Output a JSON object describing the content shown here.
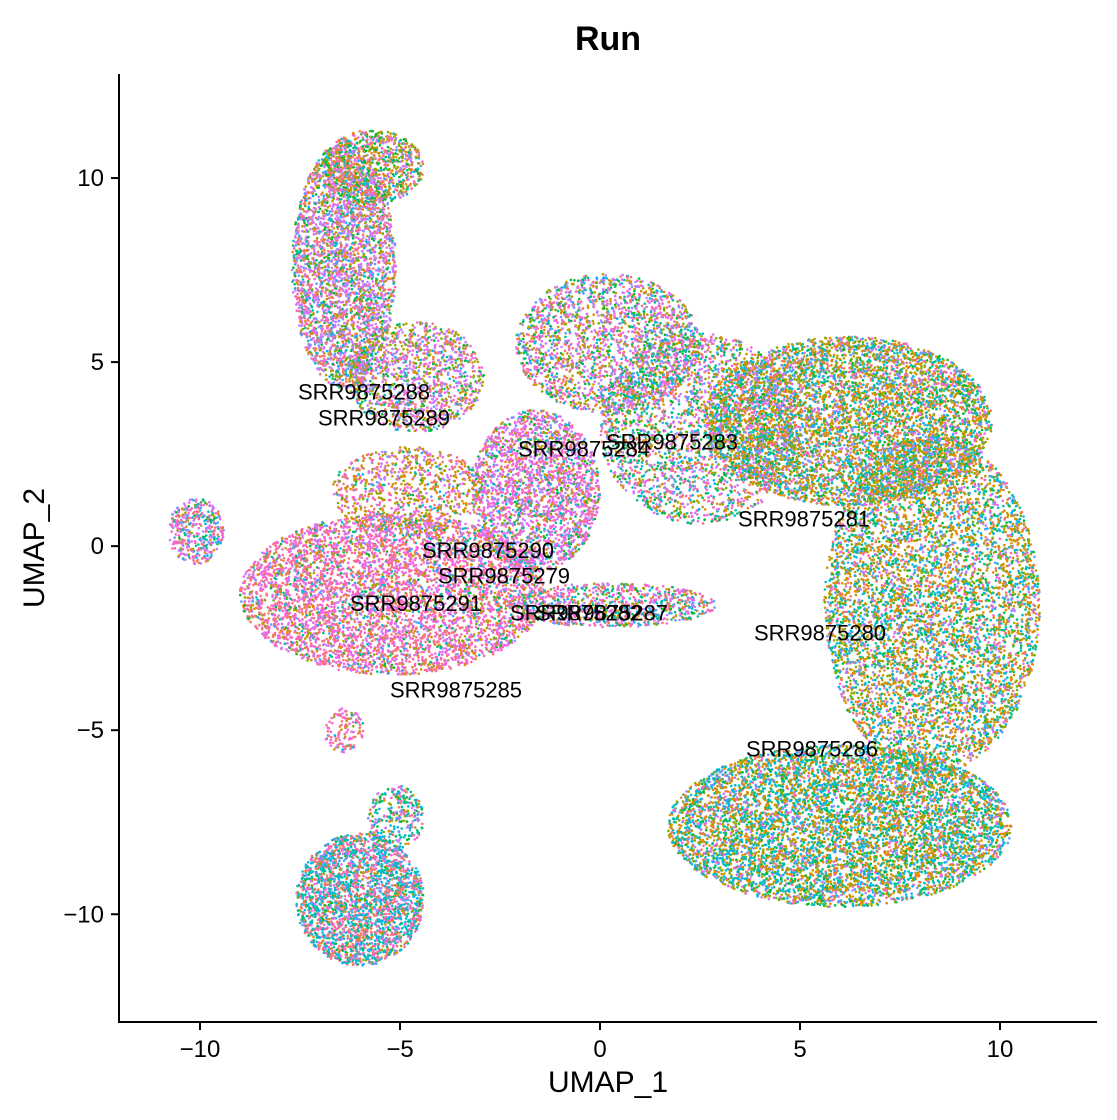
{
  "chart_data": {
    "type": "scatter",
    "title": "Run",
    "xlabel": "UMAP_1",
    "ylabel": "UMAP_2",
    "xlim": [
      -12,
      12.4
    ],
    "ylim": [
      -12.9,
      12.8
    ],
    "xticks": [
      -10,
      -5,
      0,
      5,
      10
    ],
    "yticks": [
      -10,
      -5,
      0,
      5,
      10
    ],
    "xtick_labels": [
      "−10",
      "−5",
      "0",
      "5",
      "10"
    ],
    "ytick_labels": [
      "−10",
      "−5",
      "0",
      "5",
      "10"
    ],
    "grid": false,
    "legend": "none",
    "palette": [
      "#F8766D",
      "#DE8C00",
      "#B79F00",
      "#7CAE00",
      "#00BA38",
      "#00C08B",
      "#00BFC4",
      "#00B4F0",
      "#619CFF",
      "#C77CFF",
      "#F564E3",
      "#FF64B0"
    ],
    "labels": [
      {
        "text": "SRR9875288",
        "x": -5.9,
        "y": 4.2
      },
      {
        "text": "SRR9875289",
        "x": -5.4,
        "y": 3.5
      },
      {
        "text": "SRR9875284",
        "x": -0.4,
        "y": 2.65
      },
      {
        "text": "SRR9875283",
        "x": 1.8,
        "y": 2.85
      },
      {
        "text": "SRR9875281",
        "x": 5.1,
        "y": 0.75
      },
      {
        "text": "SRR9875290",
        "x": -2.8,
        "y": -0.1
      },
      {
        "text": "SRR9875279",
        "x": -2.4,
        "y": -0.8
      },
      {
        "text": "SRR9875291",
        "x": -4.6,
        "y": -1.55
      },
      {
        "text": "SRR9875282",
        "x": -0.6,
        "y": -1.8
      },
      {
        "text": "SRR9875287",
        "x": 0.05,
        "y": -1.8
      },
      {
        "text": "SRR9875280",
        "x": 5.5,
        "y": -2.35
      },
      {
        "text": "SRR9875285",
        "x": -3.6,
        "y": -3.9
      },
      {
        "text": "SRR9875286",
        "x": 5.3,
        "y": -5.5
      }
    ],
    "point_regions": [
      {
        "name": "upper-left arm",
        "xc": -6.4,
        "yc": 7.6,
        "rx": 1.3,
        "ry": 3.3,
        "n": 3200,
        "mix": [
          0.15,
          0.05,
          0.08,
          0.05,
          0.07,
          0.04,
          0.05,
          0.03,
          0.06,
          0.28,
          0.08,
          0.06
        ]
      },
      {
        "name": "upper-left arm tip",
        "xc": -5.7,
        "yc": 10.3,
        "rx": 1.3,
        "ry": 1.0,
        "n": 900,
        "mix": [
          0.2,
          0.1,
          0.12,
          0.1,
          0.15,
          0.04,
          0.06,
          0.03,
          0.03,
          0.12,
          0.03,
          0.02
        ]
      },
      {
        "name": "arm lower",
        "xc": -4.6,
        "yc": 4.6,
        "rx": 1.7,
        "ry": 1.5,
        "n": 1300,
        "mix": [
          0.06,
          0.05,
          0.12,
          0.07,
          0.08,
          0.03,
          0.04,
          0.02,
          0.05,
          0.28,
          0.12,
          0.08
        ]
      },
      {
        "name": "left cluster",
        "xc": -5.2,
        "yc": -1.3,
        "rx": 3.8,
        "ry": 2.2,
        "n": 5200,
        "mix": [
          0.22,
          0.04,
          0.05,
          0.03,
          0.03,
          0.02,
          0.03,
          0.02,
          0.04,
          0.1,
          0.27,
          0.15
        ]
      },
      {
        "name": "left cluster top",
        "xc": -4.8,
        "yc": 1.5,
        "rx": 1.9,
        "ry": 1.2,
        "n": 900,
        "mix": [
          0.1,
          0.15,
          0.2,
          0.05,
          0.04,
          0.02,
          0.02,
          0.01,
          0.03,
          0.15,
          0.15,
          0.08
        ]
      },
      {
        "name": "left tail",
        "xc": -10.1,
        "yc": 0.4,
        "rx": 0.7,
        "ry": 0.9,
        "n": 400,
        "mix": [
          0.12,
          0.03,
          0.03,
          0.02,
          0.05,
          0.05,
          0.08,
          0.06,
          0.1,
          0.18,
          0.18,
          0.1
        ]
      },
      {
        "name": "central strip",
        "xc": -1.6,
        "yc": 1.5,
        "rx": 1.6,
        "ry": 2.2,
        "n": 2400,
        "mix": [
          0.08,
          0.04,
          0.06,
          0.03,
          0.05,
          0.03,
          0.04,
          0.02,
          0.04,
          0.25,
          0.26,
          0.1
        ]
      },
      {
        "name": "central top",
        "xc": 0.2,
        "yc": 5.5,
        "rx": 2.3,
        "ry": 1.9,
        "n": 2200,
        "mix": [
          0.1,
          0.08,
          0.08,
          0.08,
          0.1,
          0.05,
          0.05,
          0.03,
          0.06,
          0.18,
          0.13,
          0.06
        ]
      },
      {
        "name": "middle ring",
        "xc": 2.5,
        "yc": 3.2,
        "rx": 2.5,
        "ry": 2.6,
        "n": 2600,
        "mix": [
          0.08,
          0.1,
          0.06,
          0.06,
          0.12,
          0.08,
          0.08,
          0.04,
          0.05,
          0.15,
          0.12,
          0.06
        ]
      },
      {
        "name": "bridge",
        "xc": 0.3,
        "yc": -1.6,
        "rx": 2.6,
        "ry": 0.6,
        "n": 900,
        "mix": [
          0.1,
          0.06,
          0.06,
          0.05,
          0.05,
          0.06,
          0.08,
          0.05,
          0.08,
          0.14,
          0.19,
          0.08
        ]
      },
      {
        "name": "big right upper",
        "xc": 6.2,
        "yc": 3.4,
        "rx": 3.6,
        "ry": 2.3,
        "n": 6000,
        "mix": [
          0.06,
          0.2,
          0.12,
          0.08,
          0.07,
          0.09,
          0.1,
          0.05,
          0.07,
          0.08,
          0.05,
          0.03
        ]
      },
      {
        "name": "big right middle",
        "xc": 8.3,
        "yc": -1.6,
        "rx": 2.7,
        "ry": 4.6,
        "n": 6500,
        "mix": [
          0.05,
          0.24,
          0.12,
          0.07,
          0.06,
          0.08,
          0.12,
          0.06,
          0.06,
          0.07,
          0.04,
          0.03
        ]
      },
      {
        "name": "big right lower",
        "xc": 6.0,
        "yc": -7.6,
        "rx": 4.3,
        "ry": 2.2,
        "n": 7000,
        "mix": [
          0.04,
          0.2,
          0.12,
          0.06,
          0.06,
          0.09,
          0.18,
          0.08,
          0.06,
          0.05,
          0.03,
          0.03
        ]
      },
      {
        "name": "bottom left",
        "xc": -6.0,
        "yc": -9.6,
        "rx": 1.6,
        "ry": 1.8,
        "n": 2600,
        "mix": [
          0.22,
          0.03,
          0.03,
          0.02,
          0.03,
          0.08,
          0.22,
          0.07,
          0.06,
          0.05,
          0.1,
          0.09
        ]
      },
      {
        "name": "bottom left tip",
        "xc": -5.1,
        "yc": -7.4,
        "rx": 0.7,
        "ry": 0.9,
        "n": 300,
        "mix": [
          0.08,
          0.05,
          0.05,
          0.04,
          0.08,
          0.2,
          0.12,
          0.08,
          0.05,
          0.1,
          0.1,
          0.05
        ]
      },
      {
        "name": "lower connector",
        "xc": -6.4,
        "yc": -5.0,
        "rx": 0.5,
        "ry": 0.6,
        "n": 120,
        "mix": [
          0.2,
          0.05,
          0.05,
          0.03,
          0.02,
          0.02,
          0.03,
          0.02,
          0.03,
          0.1,
          0.3,
          0.15
        ]
      }
    ]
  }
}
